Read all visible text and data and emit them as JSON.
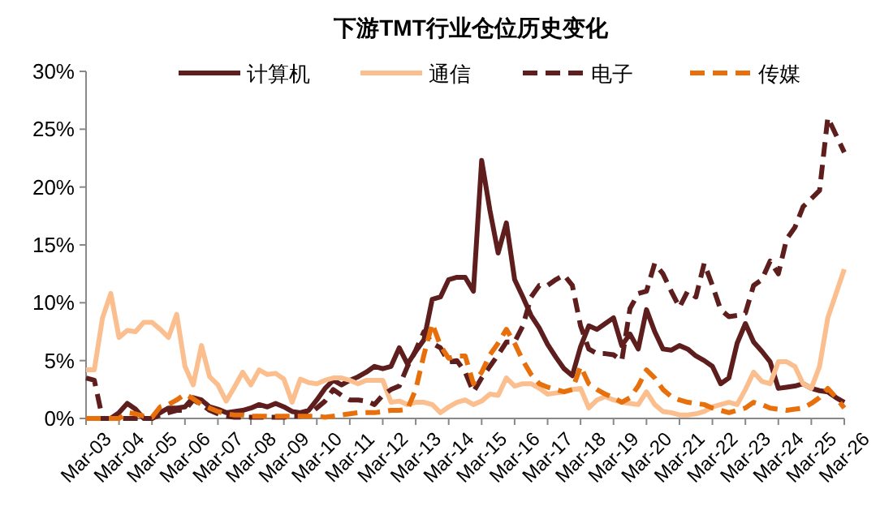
{
  "chart_data": {
    "type": "line",
    "title": "下游TMT行业仓位历史变化",
    "categories": [
      "Mar-03",
      null,
      null,
      null,
      "Mar-04",
      null,
      null,
      null,
      "Mar-05",
      null,
      null,
      null,
      "Mar-06",
      null,
      null,
      null,
      "Mar-07",
      null,
      null,
      null,
      "Mar-08",
      null,
      null,
      null,
      "Mar-09",
      null,
      null,
      null,
      "Mar-10",
      null,
      null,
      null,
      "Mar-11",
      null,
      null,
      null,
      "Mar-12",
      null,
      null,
      null,
      "Mar-13",
      null,
      null,
      null,
      "Mar-14",
      null,
      null,
      null,
      "Mar-15",
      null,
      null,
      null,
      "Mar-16",
      null,
      null,
      null,
      "Mar-17",
      null,
      null,
      null,
      "Mar-18",
      null,
      null,
      null,
      "Mar-19",
      null,
      null,
      null,
      "Mar-20",
      null,
      null,
      null,
      "Mar-21",
      null,
      null,
      null,
      "Mar-22",
      null,
      null,
      null,
      "Mar-23",
      null,
      null,
      null,
      "Mar-24",
      null,
      null,
      null,
      "Mar-25",
      null,
      null,
      null,
      "Mar-26"
    ],
    "series": [
      {
        "name": "计算机",
        "color": "#5f1e1e",
        "line_style": "solid",
        "values": [
          0,
          0,
          0,
          0,
          0.5,
          1.3,
          0.8,
          0,
          0,
          0.5,
          0.9,
          0.9,
          1.0,
          1.8,
          1.6,
          1.0,
          0.8,
          0.5,
          0.6,
          0.7,
          0.9,
          1.2,
          1.0,
          1.3,
          1.0,
          0.6,
          0.5,
          0.7,
          1.6,
          2.6,
          3.3,
          2.9,
          3.3,
          3.6,
          4.0,
          4.5,
          4.3,
          4.5,
          6.1,
          4.7,
          5.8,
          6.8,
          10.3,
          10.5,
          12.0,
          12.2,
          12.2,
          11.0,
          22.3,
          18.0,
          14.3,
          16.9,
          12.0,
          10.5,
          8.9,
          7.8,
          6.4,
          5.3,
          4.3,
          3.7,
          6.2,
          8.0,
          7.7,
          8.2,
          8.7,
          6.3,
          7.3,
          6.0,
          9.4,
          7.5,
          6.0,
          5.9,
          6.3,
          6.0,
          5.4,
          5.0,
          4.5,
          3.0,
          3.5,
          6.5,
          8.2,
          6.6,
          5.8,
          4.9,
          2.6,
          2.7,
          2.8,
          3.0,
          2.6,
          2.4,
          2.3,
          1.8,
          1.4
        ]
      },
      {
        "name": "通信",
        "color": "#fbbf8f",
        "line_style": "solid",
        "values": [
          4.2,
          4.2,
          8.7,
          10.8,
          7.0,
          7.6,
          7.5,
          8.3,
          8.3,
          7.7,
          7.0,
          9.0,
          4.5,
          2.9,
          6.3,
          3.6,
          2.9,
          1.5,
          2.7,
          4.0,
          2.9,
          4.2,
          3.8,
          3.9,
          3.4,
          1.4,
          3.4,
          3.1,
          3.0,
          3.3,
          3.5,
          3.5,
          3.3,
          3.0,
          3.3,
          3.3,
          3.3,
          1.4,
          1.5,
          1.2,
          1.4,
          1.4,
          1.2,
          0.5,
          1.0,
          1.4,
          1.6,
          1.2,
          1.5,
          2.1,
          2.0,
          3.5,
          2.8,
          3.0,
          3.0,
          2.6,
          2.1,
          2.2,
          2.3,
          2.5,
          2.6,
          0.9,
          1.6,
          1.9,
          1.6,
          1.4,
          1.3,
          1.2,
          2.3,
          1.2,
          0.6,
          0.5,
          0.3,
          0.3,
          0.4,
          0.6,
          1.0,
          1.2,
          1.4,
          1.2,
          2.5,
          4.0,
          3.2,
          3.0,
          4.9,
          4.9,
          4.5,
          3.0,
          2.6,
          4.5,
          8.7,
          10.8,
          12.9
        ]
      },
      {
        "name": "电子",
        "color": "#5f1e1e",
        "line_style": "dashed",
        "values": [
          3.5,
          3.3,
          0,
          0,
          0,
          0,
          0,
          0,
          0,
          0.3,
          0.5,
          0.7,
          0.7,
          1.6,
          1.2,
          0.7,
          0.4,
          0.2,
          0.1,
          0.1,
          0.1,
          0.1,
          0.1,
          0.1,
          0.1,
          0.2,
          0.2,
          0.3,
          0.9,
          1.5,
          2.5,
          2.0,
          1.6,
          1.6,
          1.5,
          1.2,
          2.0,
          2.5,
          2.8,
          4.5,
          5.9,
          7.5,
          6.5,
          6.1,
          4.9,
          5.0,
          4.0,
          2.3,
          3.5,
          4.5,
          5.5,
          6.6,
          6.6,
          8.0,
          10.5,
          11.5,
          11.5,
          12.0,
          12.4,
          11.5,
          8.0,
          6.0,
          5.6,
          5.6,
          5.5,
          5.0,
          9.5,
          10.8,
          11.0,
          13.4,
          12.5,
          11.0,
          9.6,
          11.0,
          10.5,
          13.4,
          11.5,
          9.4,
          8.8,
          8.9,
          9.1,
          11.5,
          12.0,
          13.6,
          12.5,
          15.5,
          16.5,
          18.3,
          19.0,
          19.7,
          26.0,
          24.5,
          23.0
        ]
      },
      {
        "name": "传媒",
        "color": "#e8700c",
        "line_style": "dashed",
        "values": [
          0,
          0,
          0,
          0,
          0,
          0.5,
          0.4,
          0.2,
          0.1,
          1.0,
          1.2,
          1.6,
          2.1,
          1.7,
          1.2,
          0.9,
          0.6,
          0.4,
          0.3,
          0.3,
          0.2,
          0.2,
          0.2,
          0.2,
          0.2,
          0.2,
          0.2,
          0.2,
          0.2,
          0.1,
          0.2,
          0.3,
          0.4,
          0.5,
          0.5,
          0.5,
          0.6,
          0.7,
          0.7,
          0.8,
          2.5,
          5.5,
          8.2,
          6.3,
          5.2,
          5.4,
          5.4,
          3.0,
          4.0,
          5.5,
          6.5,
          7.7,
          6.5,
          5.0,
          3.8,
          3.0,
          2.7,
          2.5,
          2.3,
          2.5,
          4.5,
          3.0,
          2.5,
          2.1,
          1.8,
          1.4,
          1.8,
          2.8,
          4.2,
          3.5,
          2.5,
          1.9,
          1.6,
          1.4,
          1.3,
          1.2,
          0.9,
          0.7,
          0.5,
          0.7,
          0.9,
          1.4,
          1.2,
          0.9,
          0.8,
          0.7,
          0.8,
          0.9,
          1.3,
          1.8,
          2.6,
          1.8,
          0.9
        ]
      }
    ],
    "ylim": [
      0,
      30
    ],
    "yticks": [
      {
        "value": 0,
        "label": "0%"
      },
      {
        "value": 5,
        "label": "5%"
      },
      {
        "value": 10,
        "label": "10%"
      },
      {
        "value": 15,
        "label": "15%"
      },
      {
        "value": 20,
        "label": "20%"
      },
      {
        "value": 25,
        "label": "25%"
      },
      {
        "value": 30,
        "label": "30%"
      }
    ],
    "legend": "top",
    "grid": false,
    "marker": "none"
  }
}
